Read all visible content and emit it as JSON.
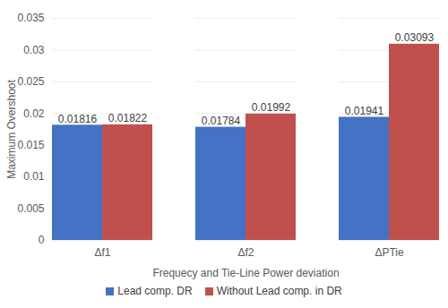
{
  "chart_data": {
    "type": "bar",
    "categories": [
      "Δf1",
      "Δf2",
      "ΔPTie"
    ],
    "series": [
      {
        "name": "Lead comp. DR",
        "color": "#4472c4",
        "values": [
          0.01816,
          0.01784,
          0.01941
        ]
      },
      {
        "name": "Without Lead comp. in DR",
        "color": "#c0504d",
        "values": [
          0.01822,
          0.01992,
          0.03093
        ]
      }
    ],
    "x_label": "Frequecy and Tie-Line Power deviation",
    "y_label": "Maximum Overshoot",
    "ylim": [
      0,
      0.035
    ],
    "yticks": [
      0,
      0.005,
      0.01,
      0.015,
      0.02,
      0.025,
      0.03,
      0.035
    ],
    "grid": true,
    "data_labels": true,
    "legend": "bottom"
  }
}
